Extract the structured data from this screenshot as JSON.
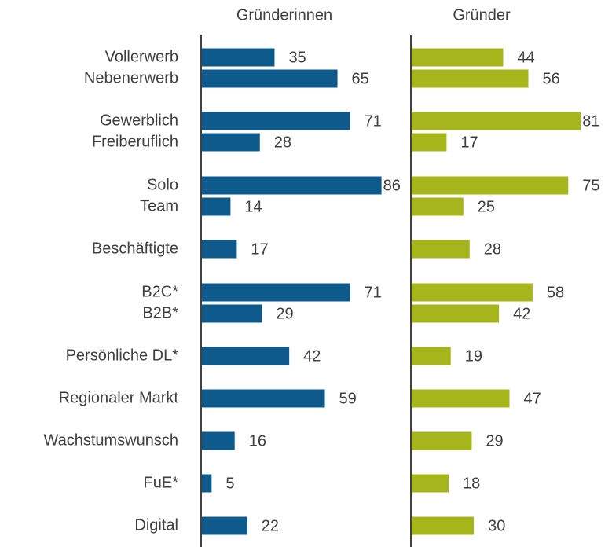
{
  "chart_data": {
    "type": "bar",
    "orientation": "horizontal",
    "categories": [
      "Vollerwerb",
      "Nebenerwerb",
      "Gewerblich",
      "Freiberuflich",
      "Solo",
      "Team",
      "Beschäftigte",
      "B2C*",
      "B2B*",
      "Persönliche DL*",
      "Regionaler Markt",
      "Wachstumswunsch",
      "FuE*",
      "Digital"
    ],
    "series": [
      {
        "name": "Gründerinnen",
        "color": "#0f5a8c",
        "values": [
          35,
          65,
          71,
          28,
          86,
          14,
          17,
          71,
          29,
          42,
          59,
          16,
          5,
          22
        ]
      },
      {
        "name": "Gründer",
        "color": "#a6b51c",
        "values": [
          44,
          56,
          81,
          17,
          75,
          25,
          28,
          58,
          42,
          19,
          47,
          29,
          18,
          30
        ]
      }
    ]
  }
}
